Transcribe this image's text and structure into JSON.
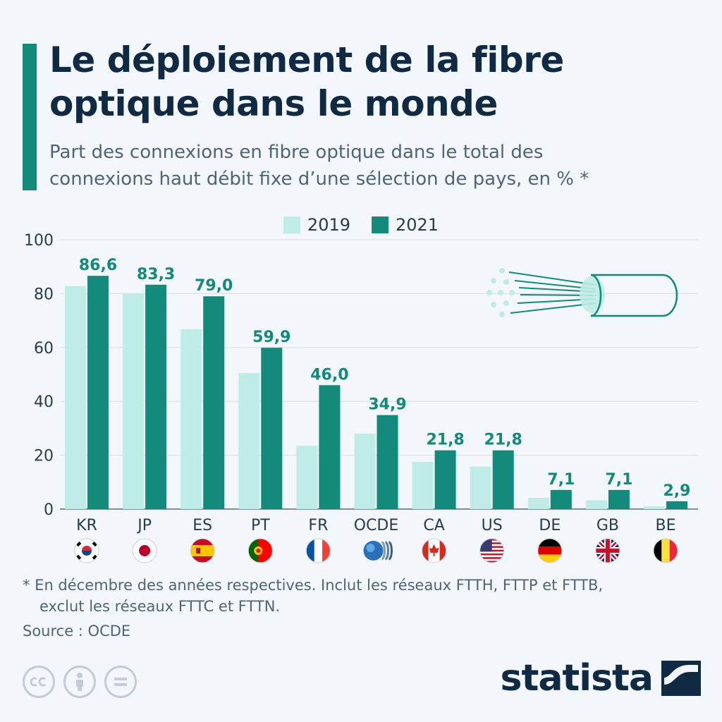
{
  "header": {
    "title_line1": "Le déploiement de la fibre",
    "title_line2": "optique dans le monde",
    "subtitle_line1": "Part des connexions en fibre optique dans le total des",
    "subtitle_line2": "connexions haut débit fixe d’une sélection de pays, en % *"
  },
  "colors": {
    "accent": "#13897a",
    "series_2019": "#bfece6",
    "series_2021": "#138a7b",
    "text_dark": "#102a43",
    "text_muted": "#4f6474"
  },
  "chart_data": {
    "type": "bar",
    "title": "Le déploiement de la fibre optique dans le monde",
    "subtitle": "Part des connexions en fibre optique dans le total des connexions haut débit fixe d’une sélection de pays, en % *",
    "xlabel": "",
    "ylabel": "",
    "ylim": [
      0,
      100
    ],
    "yticks": [
      0,
      20,
      40,
      60,
      80,
      100
    ],
    "grid": true,
    "legend_position": "top-center",
    "categories": [
      "KR",
      "JP",
      "ES",
      "PT",
      "FR",
      "OCDE",
      "CA",
      "US",
      "DE",
      "GB",
      "BE"
    ],
    "series": [
      {
        "name": "2019",
        "color": "#bfece6",
        "values": [
          82.8,
          80.0,
          66.8,
          50.5,
          23.5,
          28.0,
          17.5,
          15.8,
          4.2,
          3.3,
          1.0
        ]
      },
      {
        "name": "2021",
        "color": "#138a7b",
        "values": [
          86.6,
          83.3,
          79.0,
          59.9,
          46.0,
          34.9,
          21.8,
          21.8,
          7.1,
          7.1,
          2.9
        ]
      }
    ],
    "data_labels": [
      "86,6",
      "83,3",
      "79,0",
      "59,9",
      "46,0",
      "34,9",
      "21,8",
      "21,8",
      "7,1",
      "7,1",
      "2,9"
    ],
    "flags": [
      "south-korea-flag-icon",
      "japan-flag-icon",
      "spain-flag-icon",
      "portugal-flag-icon",
      "france-flag-icon",
      "oecd-logo-icon",
      "canada-flag-icon",
      "usa-flag-icon",
      "germany-flag-icon",
      "uk-flag-icon",
      "belgium-flag-icon"
    ]
  },
  "footer": {
    "footnote_line1": "* En décembre des années respectives. Inclut les réseaux FTTH, FTTP et FTTB,",
    "footnote_line2": "exclut les réseaux FTTC et FTTN.",
    "source": "Source : OCDE",
    "brand": "statista"
  },
  "icons": {
    "fiber": "fiber-optic-cable-icon",
    "cc": "creative-commons-icon",
    "by": "attribution-icon",
    "nd": "no-derivatives-icon",
    "logo": "statista-logo-icon"
  }
}
